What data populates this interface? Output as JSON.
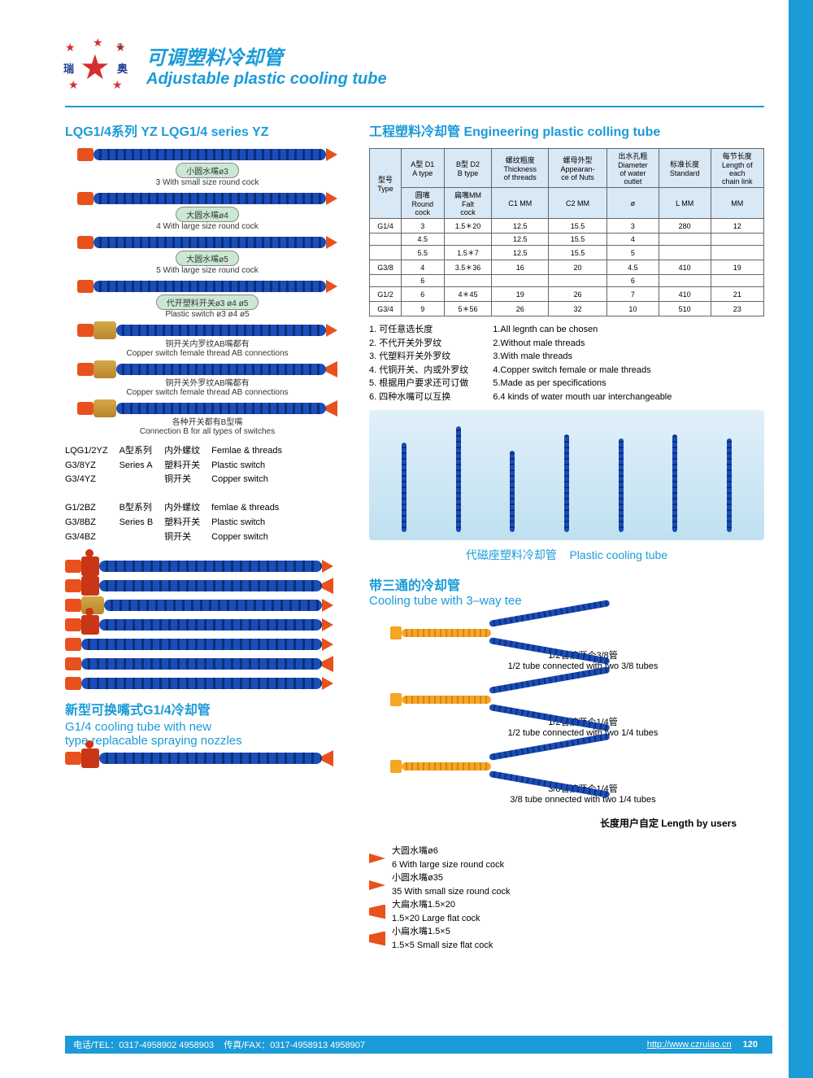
{
  "header": {
    "logo_left": "瑞",
    "logo_right": "奥",
    "title_cn": "可调塑料冷却管",
    "title_en": "Adjustable plastic cooling tube"
  },
  "sections": {
    "lqg_title": "LQG1/4系列 YZ    LQG1/4 series YZ",
    "eng_title": "工程塑料冷却管  Engineering plastic colling tube",
    "mag_title_cn": "代磁座塑料冷却管",
    "mag_title_en": "Plastic cooling tube",
    "tee_title_cn": "带三通的冷却管",
    "tee_title_en": "Cooling tube with 3–way tee",
    "new_title_cn": "新型可换嘴式G1/4冷却管",
    "new_title_en1": "G1/4 cooling tube with new",
    "new_title_en2": "type replacable spraying nozzles",
    "length_note": "长度用户自定  Length by users"
  },
  "tubes_left": [
    {
      "label_cn": "小圆水嘴ø3",
      "label_en": "3 With small size round cock"
    },
    {
      "label_cn": "大圆水嘴ø4",
      "label_en": "4 With large size round cock"
    },
    {
      "label_cn": "大圆水嘴ø5",
      "label_en": "5 With large size round cock"
    },
    {
      "label_cn": "代开塑料开关ø3 ø4 ø5",
      "label_en": "Plastic switch ø3 ø4 ø5"
    },
    {
      "label_cn": "铜开关内罗纹AB嘴都有",
      "label_en": "Copper switch female thread AB connections"
    },
    {
      "label_cn": "铜开关外罗纹AB嘴都有",
      "label_en": "Copper switch female thread AB connections"
    },
    {
      "label_cn": "各种开关都有B型嘴",
      "label_en": "Connection B for all types of switches"
    }
  ],
  "model_block": {
    "col1": [
      "LQG1/2YZ",
      "G3/8YZ",
      "G3/4YZ",
      "",
      "G1/2BZ",
      "G3/8BZ",
      "G3/4BZ"
    ],
    "col2": [
      "A型系列",
      "Series A",
      "",
      "",
      "B型系列",
      "Series B"
    ],
    "col3": [
      "内外螺纹",
      "塑料开关",
      "铜开关",
      "",
      "内外螺纹",
      "塑料开关",
      "铜开关"
    ],
    "col4": [
      "Femlae & threads",
      "Plastic switch",
      "Copper switch",
      "",
      "femlae & threads",
      "Plastic switch",
      "Copper switch"
    ]
  },
  "table": {
    "header1": [
      "型号\nType",
      "A型 D1\nA type",
      "B型 D2\nB type",
      "螺纹粗度\nThickness\nof threads",
      "螺母外型\nAppearan-\nce of Nuts",
      "出水孔粗\nDiameter\nof water\noutlet",
      "标准长度\nStandard",
      "每节长度\nLength of\neach\nchain link"
    ],
    "header2": [
      "",
      "圆嘴\nRound\ncock",
      "扁嘴MM\nFalt\ncock",
      "C1  MM",
      "C2  MM",
      "ø",
      "L  MM",
      "MM"
    ],
    "rows": [
      [
        "G1/4",
        "3",
        "1.5＊20",
        "12.5",
        "15.5",
        "3",
        "280",
        "12"
      ],
      [
        "",
        "4.5",
        "",
        "12.5",
        "15.5",
        "4",
        "",
        ""
      ],
      [
        "",
        "5.5",
        "1.5＊7",
        "12.5",
        "15.5",
        "5",
        "",
        ""
      ],
      [
        "G3/8",
        "4",
        "3.5＊36",
        "16",
        "20",
        "4.5",
        "410",
        "19"
      ],
      [
        "",
        "6",
        "",
        "",
        "",
        "6",
        "",
        ""
      ],
      [
        "G1/2",
        "6",
        "4＊45",
        "19",
        "26",
        "7",
        "410",
        "21"
      ],
      [
        "G3/4",
        "9",
        "5＊56",
        "26",
        "32",
        "10",
        "510",
        "23"
      ]
    ]
  },
  "notes_cn": [
    "1. 可任意选长度",
    "2. 不代开关外罗纹",
    "3. 代塑料开关外罗纹",
    "4. 代铜开关、内或外罗纹",
    "5. 根据用户要求还可订做",
    "6. 四种水嘴可以互换"
  ],
  "notes_en": [
    "1.All legnth can be chosen",
    "2.Without male threads",
    "3.With male threads",
    "4.Copper switch female or male threads",
    "5.Made as per specifications",
    "6.4 kinds of water mouth uar interchangeable"
  ],
  "tee_items": [
    {
      "cn": "1/2管接两个3/8管",
      "en": "1/2 tube connected with two 3/8 tubes"
    },
    {
      "cn": "1/2管接两个1/4管",
      "en": "1/2 tube connected with two 1/4 tubes"
    },
    {
      "cn": "3/8管接两个1/4管",
      "en": "3/8 tube onnected with two 1/4 tubes"
    }
  ],
  "nozzles": [
    {
      "cn": "大圆水嘴ø6",
      "en": "6 With large size round cock",
      "type": "round"
    },
    {
      "cn": "小圆水嘴ø35",
      "en": "35 With small size round cock",
      "type": "round"
    },
    {
      "cn": "大扁水嘴1.5×20",
      "en": "1.5×20 Large flat cock",
      "type": "flat"
    },
    {
      "cn": "小扁水嘴1.5×5",
      "en": "1.5×5 Small size flat cock",
      "type": "flat"
    }
  ],
  "footer": {
    "tel": "电话/TEL：0317-4958902  4958903",
    "fax": "传真/FAX：0317-4958913  4958907",
    "url": "http://www.czruiao.cn",
    "page": "120"
  },
  "colors": {
    "primary": "#1b9bd8",
    "tube_blue": "#1a4db8",
    "tube_orange": "#e8511c",
    "brass": "#d4a847",
    "label_bg": "#cce8d4"
  }
}
